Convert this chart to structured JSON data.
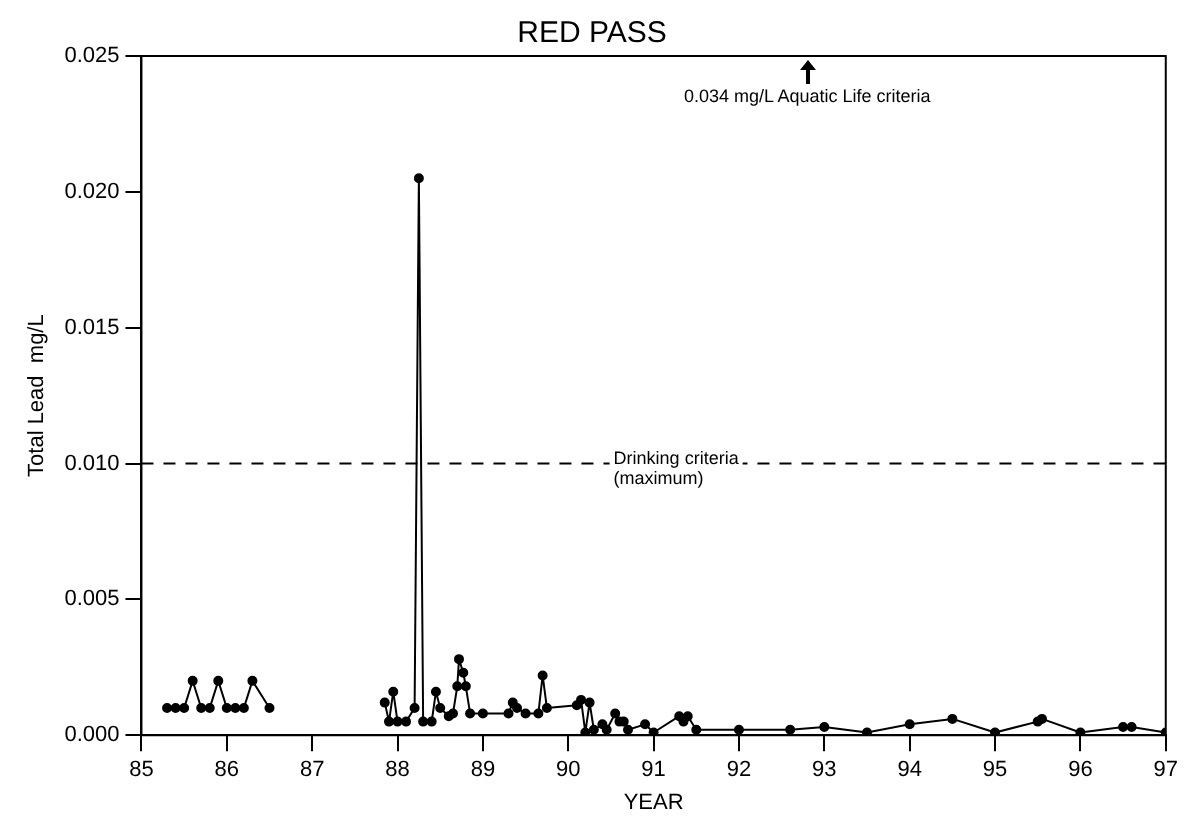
{
  "chart_data": {
    "type": "line",
    "title": "RED PASS",
    "xlabel": "YEAR",
    "ylabel": "Total Lead  mg/L",
    "marker": "circle",
    "line_style": "solid",
    "grid": false,
    "legend": false,
    "xlim": [
      85,
      97
    ],
    "xticks": [
      85,
      86,
      87,
      88,
      89,
      90,
      91,
      92,
      93,
      94,
      95,
      96,
      97
    ],
    "ylim": [
      0,
      0.025
    ],
    "yticks": [
      {
        "value": 0,
        "label": "0.000"
      },
      {
        "value": 0.005,
        "label": "0.005"
      },
      {
        "value": 0.01,
        "label": "0.010"
      },
      {
        "value": 0.015,
        "label": "0.015"
      },
      {
        "value": 0.02,
        "label": "0.020"
      },
      {
        "value": 0.025,
        "label": "0.025"
      }
    ],
    "x": [
      85.3,
      85.4,
      85.5,
      85.6,
      85.7,
      85.8,
      85.9,
      86.0,
      86.1,
      86.2,
      86.3,
      86.5,
      87.0,
      87.85,
      87.9,
      87.95,
      88.0,
      88.1,
      88.2,
      88.25,
      88.3,
      88.4,
      88.45,
      88.5,
      88.6,
      88.65,
      88.7,
      88.72,
      88.77,
      88.8,
      88.85,
      89.0,
      89.3,
      89.35,
      89.4,
      89.5,
      89.65,
      89.7,
      89.75,
      90.1,
      90.15,
      90.2,
      90.25,
      90.3,
      90.4,
      90.45,
      90.55,
      90.6,
      90.65,
      90.7,
      90.9,
      91.0,
      91.3,
      91.35,
      91.4,
      91.5,
      92.0,
      92.6,
      93.0,
      93.5,
      94.0,
      94.5,
      95.0,
      95.5,
      95.55,
      96.0,
      96.5,
      96.6,
      97.0
    ],
    "series": [
      {
        "color": "#000000",
        "values": [
          0.001,
          0.001,
          0.001,
          0.002,
          0.001,
          0.001,
          0.002,
          0.001,
          0.001,
          0.001,
          0.002,
          0.001,
          null,
          0.0012,
          0.0005,
          0.0016,
          0.0005,
          0.0005,
          0.001,
          0.0205,
          0.0005,
          0.0005,
          0.0016,
          0.001,
          0.0007,
          0.0008,
          0.0018,
          0.0028,
          0.0023,
          0.0018,
          0.0008,
          0.0008,
          0.0008,
          0.0012,
          0.001,
          0.0008,
          0.0008,
          0.0022,
          0.001,
          0.0011,
          0.0013,
          0.0001,
          0.0012,
          0.0002,
          0.0004,
          0.0002,
          0.0008,
          0.0005,
          0.0005,
          0.0002,
          0.0004,
          0.0001,
          0.0007,
          0.0005,
          0.0007,
          0.0002,
          0.0002,
          0.0002,
          0.0003,
          0.0001,
          0.0004,
          0.0006,
          0.0001,
          0.0005,
          0.0006,
          0.0001,
          0.0003,
          0.0003,
          0.0001
        ]
      }
    ],
    "ref_lines": [
      {
        "axis": "y",
        "value": 0.01,
        "label": "Drinking criteria\n(maximum)",
        "line_style": "dashed",
        "color": "#000000"
      }
    ],
    "annotations": [
      "0.034 mg/L Aquatic Life criteria"
    ]
  }
}
